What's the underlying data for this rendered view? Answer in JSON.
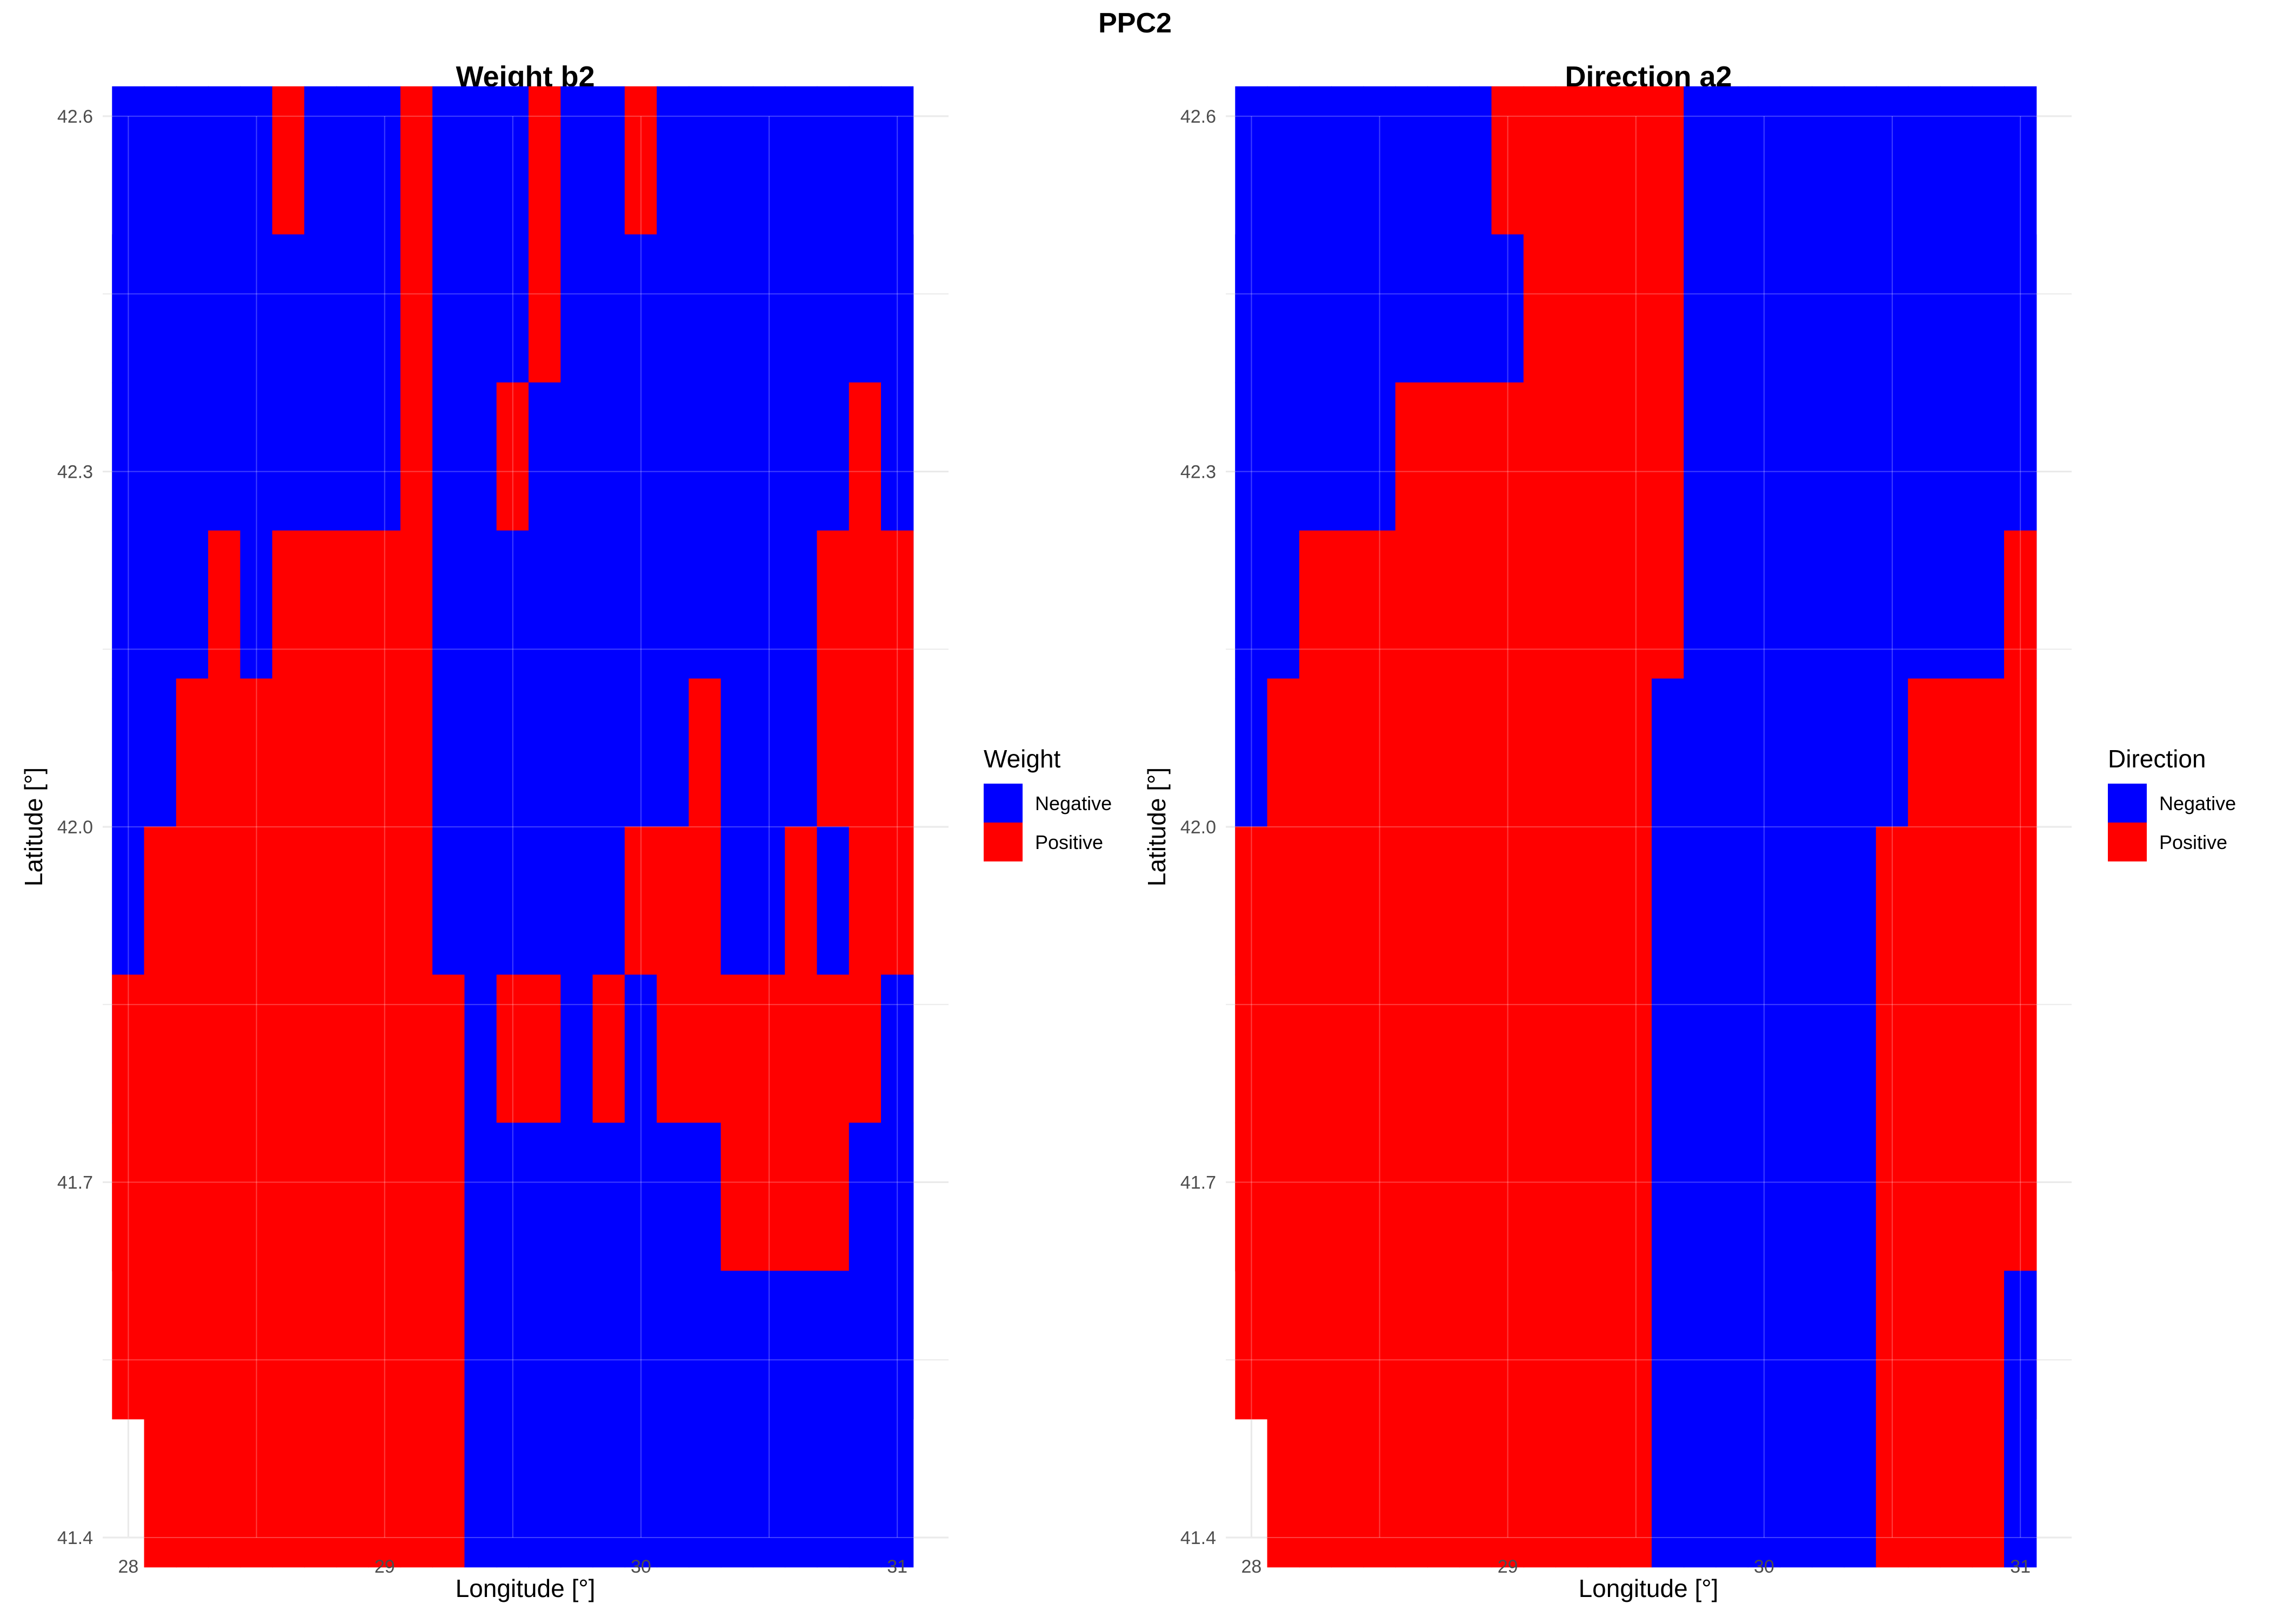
{
  "figure": {
    "title": "PPC2"
  },
  "colors": {
    "negative": "#0000FF",
    "positive": "#FF0000",
    "grid": "#E5E5E5",
    "text": "#000000",
    "tick": "#4D4D4D"
  },
  "chart_data": [
    {
      "type": "heatmap",
      "title": "Weight b2",
      "xlabel": "Longitude [°]",
      "ylabel": "Latitude [°]",
      "xlim": [
        27.9,
        31.2
      ],
      "ylim": [
        41.4,
        42.6
      ],
      "x_ticks": [
        28,
        29,
        30,
        31
      ],
      "y_ticks": [
        41.4,
        41.7,
        42.0,
        42.3,
        42.6
      ],
      "x_tick_labels": [
        "28",
        "29",
        "30",
        "31"
      ],
      "y_tick_labels": [
        "41.4",
        "41.7",
        "42.0",
        "42.3",
        "42.6"
      ],
      "grid": true,
      "legend": {
        "title": "Weight",
        "position": "right",
        "entries": [
          {
            "key": "N",
            "label": "Negative"
          },
          {
            "key": "P",
            "label": "Positive"
          }
        ]
      },
      "x": [
        28.0,
        28.125,
        28.25,
        28.375,
        28.5,
        28.625,
        28.75,
        28.875,
        29.0,
        29.125,
        29.25,
        29.375,
        29.5,
        29.625,
        29.75,
        29.875,
        30.0,
        30.125,
        30.25,
        30.375,
        30.5,
        30.625,
        30.75,
        30.875,
        31.0
      ],
      "y": [
        42.5,
        42.375,
        42.25,
        42.125,
        42.0,
        41.875,
        41.75,
        41.625,
        41.5
      ],
      "rows": [
        "NNNNNPNNNPNNNPNNPNNNNNNNN",
        "NNNNNNNNNPNNNPNNNNNNNNNNN",
        "NNNNNNNNNPNNPNNNNNNNNNNPN",
        "NNNPNPPPPPNNNNNNNNNNNNPPP",
        "NNPPPPPPPPNNNNNNNNPNNNPPP",
        "NPPPPPPPPPNNNNNNPPPNNPNPP",
        "PPPPPPPPPPPNPPNPNPPPPPPPN",
        "PPPPPPPPPPPNNNNNNNNPPPPNN",
        " PPPPPPPPPPNNNNNNNNNNNNNN"
      ]
    },
    {
      "type": "heatmap",
      "title": "Direction a2",
      "xlabel": "Longitude [°]",
      "ylabel": "Latitude [°]",
      "xlim": [
        27.9,
        31.2
      ],
      "ylim": [
        41.4,
        42.6
      ],
      "x_ticks": [
        28,
        29,
        30,
        31
      ],
      "y_ticks": [
        41.4,
        41.7,
        42.0,
        42.3,
        42.6
      ],
      "x_tick_labels": [
        "28",
        "29",
        "30",
        "31"
      ],
      "y_tick_labels": [
        "41.4",
        "41.7",
        "42.0",
        "42.3",
        "42.6"
      ],
      "grid": true,
      "legend": {
        "title": "Direction",
        "position": "right",
        "entries": [
          {
            "key": "N",
            "label": "Negative"
          },
          {
            "key": "P",
            "label": "Positive"
          }
        ]
      },
      "x": [
        28.0,
        28.125,
        28.25,
        28.375,
        28.5,
        28.625,
        28.75,
        28.875,
        29.0,
        29.125,
        29.25,
        29.375,
        29.5,
        29.625,
        29.75,
        29.875,
        30.0,
        30.125,
        30.25,
        30.375,
        30.5,
        30.625,
        30.75,
        30.875,
        31.0
      ],
      "y": [
        42.5,
        42.375,
        42.25,
        42.125,
        42.0,
        41.875,
        41.75,
        41.625,
        41.5
      ],
      "rows": [
        "NNNNNNNNPPPPPPNNNNNNNNNNN",
        "NNNNNNNNNPPPPPNNNNNNNNNNN",
        "NNNNNPPPPPPPPPNNNNNNNNNNN",
        "NNPPPPPPPPPPPPNNNNNNNNNNP",
        "NPPPPPPPPPPPPNNNNNNNNPPPP",
        "PPPPPPPPPPPPPNNNNNNNPPPPP",
        "PPPPPPPPPPPPPNNNNNNNPPPPP",
        "PPPPPPPPPPPPPNNNNNNNPPPPP",
        " PPPPPPPPPPPPNNNNNNNPPPPN"
      ]
    }
  ]
}
